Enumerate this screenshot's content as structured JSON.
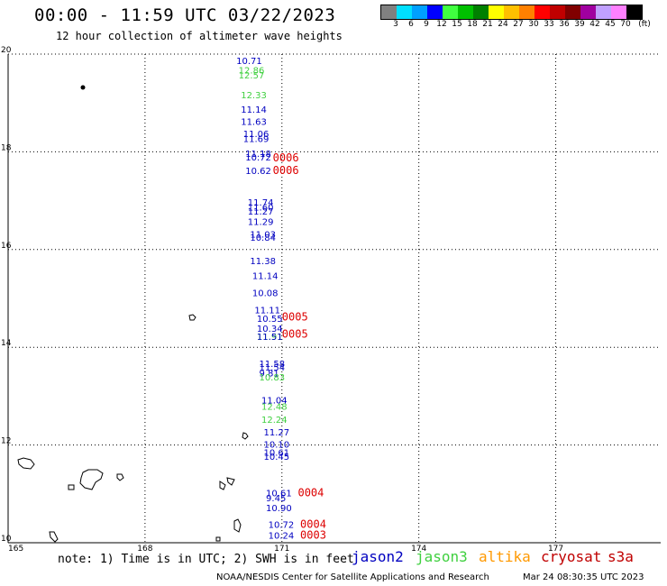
{
  "title": "00:00 - 11:59 UTC 03/22/2023",
  "subtitle": "12 hour collection of altimeter wave heights",
  "colorbar": {
    "unit": "(ft)",
    "bins": [
      {
        "label": "3",
        "color": "#808080"
      },
      {
        "label": "6",
        "color": "#00e0ff"
      },
      {
        "label": "9",
        "color": "#00a0ff"
      },
      {
        "label": "12",
        "color": "#0000ff"
      },
      {
        "label": "15",
        "color": "#40ff40"
      },
      {
        "label": "18",
        "color": "#00c000"
      },
      {
        "label": "21",
        "color": "#008000"
      },
      {
        "label": "24",
        "color": "#ffff00"
      },
      {
        "label": "27",
        "color": "#ffc000"
      },
      {
        "label": "30",
        "color": "#ff8000"
      },
      {
        "label": "33",
        "color": "#ff0000"
      },
      {
        "label": "36",
        "color": "#c00000"
      },
      {
        "label": "39",
        "color": "#800000"
      },
      {
        "label": "42",
        "color": "#a000a0"
      },
      {
        "label": "45",
        "color": "#c0a0ff"
      },
      {
        "label": "70",
        "color": "#ff80ff"
      },
      {
        "label": "",
        "color": "#000000"
      }
    ]
  },
  "axes": {
    "lon_min": 165,
    "lon_max": 179.3,
    "lat_min": 10,
    "lat_max": 20,
    "lon_ticks": [
      "165",
      "168",
      "171",
      "174",
      "177"
    ],
    "lat_ticks": [
      "20",
      "18",
      "16",
      "14",
      "12",
      "10"
    ]
  },
  "colors": {
    "jason2": "#0000c0",
    "jason3": "#40d040",
    "altika": "#ff9900",
    "cryosat": "#c00000",
    "s3a": "#c00000",
    "track": "#dd0000"
  },
  "observations": [
    {
      "lat": 19.8,
      "lon": 170.0,
      "text": "10.71",
      "sat": "jason2"
    },
    {
      "lat": 19.6,
      "lon": 170.05,
      "text": "12.86",
      "sat": "jason3"
    },
    {
      "lat": 19.5,
      "lon": 170.05,
      "text": "12.57",
      "sat": "jason3"
    },
    {
      "lat": 19.1,
      "lon": 170.1,
      "text": "12.33",
      "sat": "jason3"
    },
    {
      "lat": 18.8,
      "lon": 170.1,
      "text": "11.14",
      "sat": "jason2"
    },
    {
      "lat": 18.55,
      "lon": 170.1,
      "text": "11.63",
      "sat": "jason2"
    },
    {
      "lat": 18.3,
      "lon": 170.15,
      "text": "11.06",
      "sat": "jason2"
    },
    {
      "lat": 18.2,
      "lon": 170.15,
      "text": "11.69",
      "sat": "jason2"
    },
    {
      "lat": 17.9,
      "lon": 170.2,
      "text": "11.18",
      "sat": "jason2"
    },
    {
      "lat": 17.82,
      "lon": 170.2,
      "text": "10.72",
      "sat": "jason2"
    },
    {
      "lat": 17.55,
      "lon": 170.2,
      "text": "10.62",
      "sat": "jason2"
    },
    {
      "lat": 16.9,
      "lon": 170.25,
      "text": "11.74",
      "sat": "jason2"
    },
    {
      "lat": 16.8,
      "lon": 170.25,
      "text": "11.60",
      "sat": "jason2"
    },
    {
      "lat": 16.72,
      "lon": 170.25,
      "text": "11.27",
      "sat": "jason2"
    },
    {
      "lat": 16.5,
      "lon": 170.25,
      "text": "11.29",
      "sat": "jason2"
    },
    {
      "lat": 16.25,
      "lon": 170.3,
      "text": "11.03",
      "sat": "jason2"
    },
    {
      "lat": 16.18,
      "lon": 170.3,
      "text": "10.84",
      "sat": "jason2"
    },
    {
      "lat": 15.7,
      "lon": 170.3,
      "text": "11.38",
      "sat": "jason2"
    },
    {
      "lat": 15.4,
      "lon": 170.35,
      "text": "11.14",
      "sat": "jason2"
    },
    {
      "lat": 15.05,
      "lon": 170.35,
      "text": "10.08",
      "sat": "jason2"
    },
    {
      "lat": 14.7,
      "lon": 170.4,
      "text": "11.11",
      "sat": "jason2"
    },
    {
      "lat": 14.52,
      "lon": 170.45,
      "text": "10.55",
      "sat": "jason2"
    },
    {
      "lat": 14.32,
      "lon": 170.45,
      "text": "10.34",
      "sat": "jason2"
    },
    {
      "lat": 14.15,
      "lon": 170.45,
      "text": "11.91",
      "sat": "jason3"
    },
    {
      "lat": 14.15,
      "lon": 170.45,
      "text": "11.51",
      "sat": "jason2"
    },
    {
      "lat": 13.6,
      "lon": 170.5,
      "text": "11.58",
      "sat": "jason2"
    },
    {
      "lat": 13.52,
      "lon": 170.5,
      "text": "11.54",
      "sat": "jason2"
    },
    {
      "lat": 13.4,
      "lon": 170.5,
      "text": "9.81",
      "sat": "jason2"
    },
    {
      "lat": 13.32,
      "lon": 170.5,
      "text": "10.83",
      "sat": "jason3"
    },
    {
      "lat": 12.85,
      "lon": 170.55,
      "text": "11.04",
      "sat": "jason2"
    },
    {
      "lat": 12.72,
      "lon": 170.55,
      "text": "12.48",
      "sat": "jason3"
    },
    {
      "lat": 12.45,
      "lon": 170.55,
      "text": "12.24",
      "sat": "jason3"
    },
    {
      "lat": 12.2,
      "lon": 170.6,
      "text": "11.27",
      "sat": "jason2"
    },
    {
      "lat": 11.95,
      "lon": 170.6,
      "text": "10.10",
      "sat": "jason2"
    },
    {
      "lat": 11.78,
      "lon": 170.6,
      "text": "10.61",
      "sat": "jason2"
    },
    {
      "lat": 11.7,
      "lon": 170.6,
      "text": "10.45",
      "sat": "jason2"
    },
    {
      "lat": 10.95,
      "lon": 170.65,
      "text": "10.61",
      "sat": "jason2"
    },
    {
      "lat": 10.85,
      "lon": 170.65,
      "text": "9.45",
      "sat": "jason2"
    },
    {
      "lat": 10.65,
      "lon": 170.65,
      "text": "10.90",
      "sat": "jason2"
    },
    {
      "lat": 10.3,
      "lon": 170.7,
      "text": "10.72",
      "sat": "jason2"
    },
    {
      "lat": 10.08,
      "lon": 170.7,
      "text": "10.24",
      "sat": "jason2"
    }
  ],
  "track_labels": [
    {
      "lat": 17.8,
      "lon": 170.8,
      "text": "0006"
    },
    {
      "lat": 17.55,
      "lon": 170.8,
      "text": "0006"
    },
    {
      "lat": 14.55,
      "lon": 171.0,
      "text": "0005"
    },
    {
      "lat": 14.2,
      "lon": 171.0,
      "text": "0005"
    },
    {
      "lat": 10.95,
      "lon": 171.35,
      "text": "0004"
    },
    {
      "lat": 10.3,
      "lon": 171.4,
      "text": "0004"
    },
    {
      "lat": 10.08,
      "lon": 171.4,
      "text": "0003"
    }
  ],
  "note": "note: 1) Time is in UTC; 2) SWH is in feet",
  "legend": [
    "jason2",
    "jason3",
    "altika",
    "cryosat",
    "s3a"
  ],
  "credit": "NOAA/NESDIS Center for Satellite Applications and Research",
  "timestamp": "Mar 24 08:30:35 UTC 2023"
}
